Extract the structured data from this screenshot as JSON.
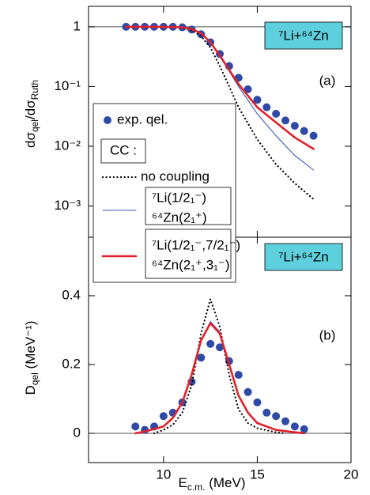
{
  "chart_data": [
    {
      "type": "line",
      "ylabel": [
        {
          "text": "dσ"
        },
        {
          "text": "qel",
          "sub": true
        },
        {
          "text": "/dσ"
        },
        {
          "text": "Ruth",
          "sub": true
        }
      ],
      "label_box": "⁷Li+⁶⁴Zn",
      "panel_label": "(a)",
      "xlim": [
        6,
        20
      ],
      "xticks": [
        10,
        15,
        20
      ],
      "xticklabels": false,
      "ylim": [
        0.0003,
        2.2
      ],
      "log_y": true,
      "hline": 1,
      "yticks": [
        1,
        {
          "value": 0.1,
          "label": "10⁻¹"
        },
        {
          "value": 0.01,
          "label": "10⁻²"
        },
        {
          "value": 0.001,
          "label": "10⁻³"
        }
      ],
      "legend_heading": "CC :",
      "series": [
        {
          "name": "exp. qel.",
          "style": "markers",
          "color": "#2f4aa6",
          "x": [
            8.0,
            8.5,
            9.0,
            9.5,
            10.0,
            10.5,
            11.0,
            11.5,
            12.0,
            12.5,
            13.0,
            13.5,
            14.0,
            14.5,
            15.0,
            15.5,
            16.0,
            16.5,
            17.0,
            17.5,
            18.0
          ],
          "values": [
            1,
            1,
            1,
            1,
            1,
            1,
            0.98,
            0.9,
            0.75,
            0.55,
            0.35,
            0.22,
            0.14,
            0.09,
            0.06,
            0.045,
            0.035,
            0.027,
            0.022,
            0.018,
            0.015
          ]
        },
        {
          "name": "no coupling",
          "style": "dotted",
          "color": "#000000",
          "x": [
            8,
            10,
            11,
            11.5,
            12,
            12.5,
            13,
            13.5,
            14,
            15,
            16,
            17,
            18
          ],
          "values": [
            1,
            1,
            0.97,
            0.88,
            0.7,
            0.45,
            0.22,
            0.1,
            0.045,
            0.013,
            0.005,
            0.0024,
            0.0013
          ]
        },
        {
          "name": [
            "⁷Li(1/2₁⁻)",
            "⁶⁴Zn(2₁⁺)"
          ],
          "style": "thin",
          "color": "#3a56b8",
          "x": [
            8,
            10,
            11,
            11.5,
            12,
            12.5,
            13,
            13.5,
            14,
            15,
            16,
            17,
            18
          ],
          "values": [
            1,
            1,
            0.98,
            0.92,
            0.78,
            0.54,
            0.32,
            0.18,
            0.1,
            0.035,
            0.015,
            0.007,
            0.004
          ]
        },
        {
          "name": [
            "⁷Li(1/2₁⁻,7/2₁⁻)",
            "⁶⁴Zn(2₁⁺,3₁⁻)"
          ],
          "style": "thick",
          "color": "#e0202a",
          "x": [
            8,
            10,
            11,
            11.5,
            12,
            12.5,
            13,
            13.5,
            14,
            14.5,
            15,
            16,
            17,
            18
          ],
          "values": [
            1,
            1,
            0.98,
            0.92,
            0.78,
            0.55,
            0.33,
            0.19,
            0.11,
            0.07,
            0.045,
            0.025,
            0.014,
            0.009
          ]
        }
      ]
    },
    {
      "type": "line",
      "ylabel": [
        {
          "text": "D"
        },
        {
          "text": "qel",
          "sub": true
        },
        {
          "text": " (MeV⁻¹)"
        }
      ],
      "xlabel": [
        {
          "text": "E"
        },
        {
          "text": "c.m.",
          "sub": true
        },
        {
          "text": " (MeV)"
        }
      ],
      "label_box": "⁷Li+⁶⁴Zn",
      "panel_label": "(b)",
      "xlim": [
        6,
        20
      ],
      "xticks": [
        10,
        15,
        20
      ],
      "xticklabels": true,
      "ylim": [
        -0.085,
        0.57
      ],
      "log_y": false,
      "hline": 0,
      "yticks": [
        0,
        0.2,
        0.4
      ],
      "series": [
        {
          "style": "markers",
          "color": "#2f4aa6",
          "x": [
            8.5,
            9.0,
            9.5,
            10.0,
            10.5,
            11.0,
            11.5,
            12.0,
            12.5,
            13.0,
            13.5,
            14.0,
            14.5,
            15.0,
            15.5,
            16.0,
            16.5,
            17.0,
            17.5
          ],
          "values": [
            0.02,
            0.01,
            0.02,
            0.05,
            0.06,
            0.09,
            0.15,
            0.22,
            0.26,
            0.25,
            0.21,
            0.17,
            0.12,
            0.09,
            0.06,
            0.05,
            0.035,
            0.02,
            0.012
          ]
        },
        {
          "style": "dotted",
          "color": "#000000",
          "x": [
            9.5,
            10,
            10.5,
            11,
            11.5,
            12,
            12.5,
            13,
            13.5,
            14,
            14.5,
            15,
            16,
            16.5
          ],
          "values": [
            0,
            0.01,
            0.025,
            0.06,
            0.14,
            0.29,
            0.39,
            0.31,
            0.17,
            0.07,
            0.03,
            0.015,
            0.003,
            0
          ]
        },
        {
          "style": "thin",
          "color": "#3a56b8",
          "x": [
            8.5,
            9,
            10,
            10.5,
            11,
            11.5,
            12,
            12.5,
            13,
            13.5,
            14,
            14.5,
            15,
            16,
            17,
            17.5
          ],
          "values": [
            0,
            0.005,
            0.02,
            0.045,
            0.09,
            0.17,
            0.27,
            0.325,
            0.295,
            0.2,
            0.11,
            0.06,
            0.03,
            0.01,
            0.003,
            0
          ]
        },
        {
          "style": "thick",
          "color": "#e0202a",
          "x": [
            8.5,
            9,
            10,
            10.5,
            11,
            11.5,
            12,
            12.5,
            13,
            13.5,
            14,
            14.5,
            15,
            16,
            17,
            17.5
          ],
          "values": [
            0,
            0.005,
            0.02,
            0.045,
            0.09,
            0.17,
            0.27,
            0.32,
            0.29,
            0.2,
            0.11,
            0.06,
            0.03,
            0.01,
            0.003,
            0
          ]
        }
      ]
    }
  ]
}
